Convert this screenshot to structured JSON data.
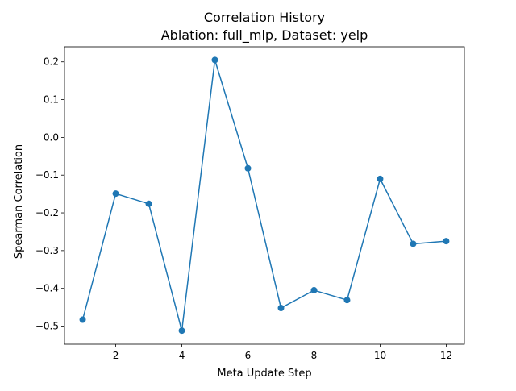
{
  "chart_data": {
    "type": "line",
    "title": "Correlation History",
    "subtitle": "Ablation: full_mlp, Dataset: yelp",
    "xlabel": "Meta Update Step",
    "ylabel": "Spearman Correlation",
    "xlim": [
      0.45,
      12.55
    ],
    "ylim": [
      -0.548,
      0.24
    ],
    "xticks": [
      2,
      4,
      6,
      8,
      10,
      12
    ],
    "xtick_labels": [
      "2",
      "4",
      "6",
      "8",
      "10",
      "12"
    ],
    "yticks": [
      -0.5,
      -0.4,
      -0.3,
      -0.2,
      -0.1,
      0.0,
      0.1,
      0.2
    ],
    "ytick_labels": [
      "−0.5",
      "−0.4",
      "−0.3",
      "−0.2",
      "−0.1",
      "0.0",
      "0.1",
      "0.2"
    ],
    "grid": false,
    "series": [
      {
        "color": "#1f77b4",
        "marker": "circle",
        "x": [
          1,
          2,
          3,
          4,
          5,
          6,
          7,
          8,
          9,
          10,
          11,
          12
        ],
        "y": [
          -0.483,
          -0.149,
          -0.176,
          -0.512,
          0.205,
          -0.082,
          -0.452,
          -0.405,
          -0.431,
          -0.11,
          -0.282,
          -0.275
        ]
      }
    ]
  }
}
